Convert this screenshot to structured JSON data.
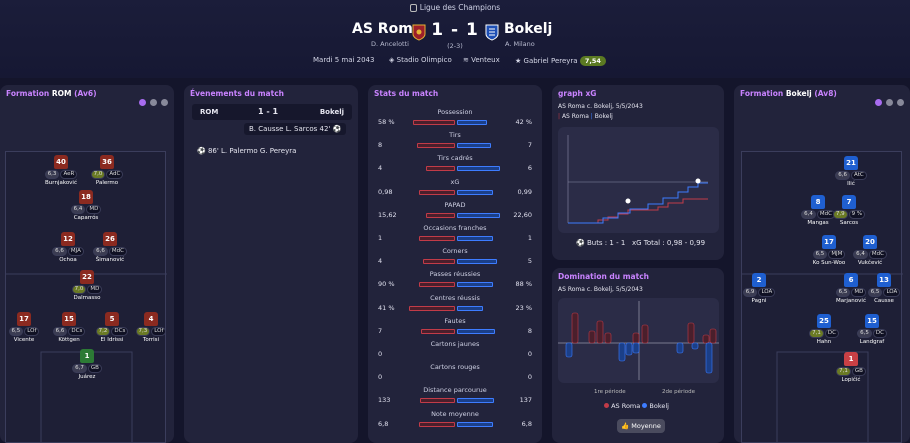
{
  "header": {
    "competition": "Ligue des Champions",
    "home": "AS Roma",
    "home_coach": "D. Ancelotti",
    "away": "Bokelj",
    "away_coach": "A. Milano",
    "score": "1 - 1",
    "aggregate": "(2-3)",
    "date": "Mardi 5 mai 2043",
    "stadium": "Stadio Olimpico",
    "weather": "Venteux",
    "potm": "Gabriel Pereyra",
    "potm_rating": "7,54"
  },
  "formation_home": {
    "title_prefix": "Formation",
    "team": "ROM",
    "suffix": "(Av6)",
    "players": [
      {
        "n": "40",
        "name": "Burnjaković",
        "r": "6,3",
        "pos": "AeR"
      },
      {
        "n": "36",
        "name": "Palermo",
        "r": "7,0",
        "pos": "AdC"
      },
      {
        "n": "18",
        "name": "Caparrós",
        "r": "6,4",
        "pos": "MD"
      },
      {
        "n": "12",
        "name": "Ochoa",
        "r": "6,6",
        "pos": "MJA"
      },
      {
        "n": "26",
        "name": "Šimanović",
        "r": "6,6",
        "pos": "MdC"
      },
      {
        "n": "22",
        "name": "Dalmasso",
        "r": "7,0",
        "pos": "MD"
      },
      {
        "n": "17",
        "name": "Vicente",
        "r": "6,5",
        "pos": "LOf"
      },
      {
        "n": "15",
        "name": "Köttgen",
        "r": "6,6",
        "pos": "DCs"
      },
      {
        "n": "5",
        "name": "El Idrissi",
        "r": "7,2",
        "pos": "DCs"
      },
      {
        "n": "4",
        "name": "Torrisi",
        "r": "7,3",
        "pos": "LOf"
      },
      {
        "n": "1",
        "name": "Juárez",
        "r": "6,7",
        "pos": "GB"
      }
    ]
  },
  "formation_away": {
    "title_prefix": "Formation",
    "team": "Bokelj",
    "suffix": "(Av8)",
    "players": [
      {
        "n": "21",
        "name": "Ilić",
        "r": "6,6",
        "pos": "AtC"
      },
      {
        "n": "8",
        "name": "Mangas",
        "r": "6,4",
        "pos": "MdC"
      },
      {
        "n": "7",
        "name": "Sarcos",
        "r": "7,9",
        "pos": "9 %"
      },
      {
        "n": "17",
        "name": "Ko Sun-Woo",
        "r": "6,5",
        "pos": "MJM"
      },
      {
        "n": "20",
        "name": "Vukčević",
        "r": "6,4",
        "pos": "MdC"
      },
      {
        "n": "2",
        "name": "Pagni",
        "r": "6,9",
        "pos": "LOA"
      },
      {
        "n": "6",
        "name": "Marjanović",
        "r": "6,5",
        "pos": "MD"
      },
      {
        "n": "13",
        "name": "Causse",
        "r": "6,5",
        "pos": "LOA"
      },
      {
        "n": "25",
        "name": "Hahn",
        "r": "7,1",
        "pos": "DC"
      },
      {
        "n": "15",
        "name": "Landgraf",
        "r": "6,5",
        "pos": "DC"
      },
      {
        "n": "1",
        "name": "Lopičić",
        "r": "7,1",
        "pos": "GB"
      }
    ]
  },
  "events": {
    "title": "Évenements du match",
    "home": "ROM",
    "score": "1 - 1",
    "away": "Bokelj",
    "items": [
      "B. Causse L. Sarcos 42'",
      "86' L. Palermo G. Pereyra"
    ]
  },
  "stats": {
    "title": "Stats du match",
    "rows": [
      {
        "name": "Possession",
        "l": "58 %",
        "r": "42 %",
        "lv": 58,
        "rv": 42
      },
      {
        "name": "Tirs",
        "l": "8",
        "r": "7",
        "lv": 8,
        "rv": 7
      },
      {
        "name": "Tirs cadrés",
        "l": "4",
        "r": "6",
        "lv": 4,
        "rv": 6
      },
      {
        "name": "xG",
        "l": "0,98",
        "r": "0,99",
        "lv": 0.98,
        "rv": 0.99
      },
      {
        "name": "PAPAD",
        "l": "15,62",
        "r": "22,60",
        "lv": 15.62,
        "rv": 22.6
      },
      {
        "name": "Occasions franches",
        "l": "1",
        "r": "1",
        "lv": 1,
        "rv": 1
      },
      {
        "name": "Corners",
        "l": "4",
        "r": "5",
        "lv": 4,
        "rv": 5
      },
      {
        "name": "Passes réussies",
        "l": "90 %",
        "r": "88 %",
        "lv": 90,
        "rv": 88
      },
      {
        "name": "Centres réussis",
        "l": "41 %",
        "r": "23 %",
        "lv": 41,
        "rv": 23
      },
      {
        "name": "Fautes",
        "l": "7",
        "r": "8",
        "lv": 7,
        "rv": 8
      },
      {
        "name": "Cartons jaunes",
        "l": "0",
        "r": "0",
        "lv": 0,
        "rv": 0
      },
      {
        "name": "Cartons rouges",
        "l": "0",
        "r": "0",
        "lv": 0,
        "rv": 0
      },
      {
        "name": "Distance parcourue",
        "l": "133",
        "r": "137",
        "lv": 133,
        "rv": 137
      },
      {
        "name": "Note moyenne",
        "l": "6,8",
        "r": "6,8",
        "lv": 6.8,
        "rv": 6.8
      }
    ]
  },
  "xg": {
    "title": "graph xG",
    "subtitle": "AS Roma c. Bokelj, 5/5/2043",
    "legend_home": "AS Roma",
    "legend_away": "Bokelj",
    "footer_goals": "Buts : 1 - 1",
    "footer_xg": "xG Total : 0,98 - 0,99"
  },
  "domination": {
    "title": "Domination du match",
    "subtitle": "AS Roma c. Bokelj, 5/5/2043",
    "label_h1": "1re période",
    "label_h2": "2de période",
    "legend_home": "AS Roma",
    "legend_away": "Bokelj",
    "button": "Moyenne"
  },
  "colors": {
    "home": "#c23b48",
    "away": "#3d7cff",
    "accent": "#c983ff"
  }
}
